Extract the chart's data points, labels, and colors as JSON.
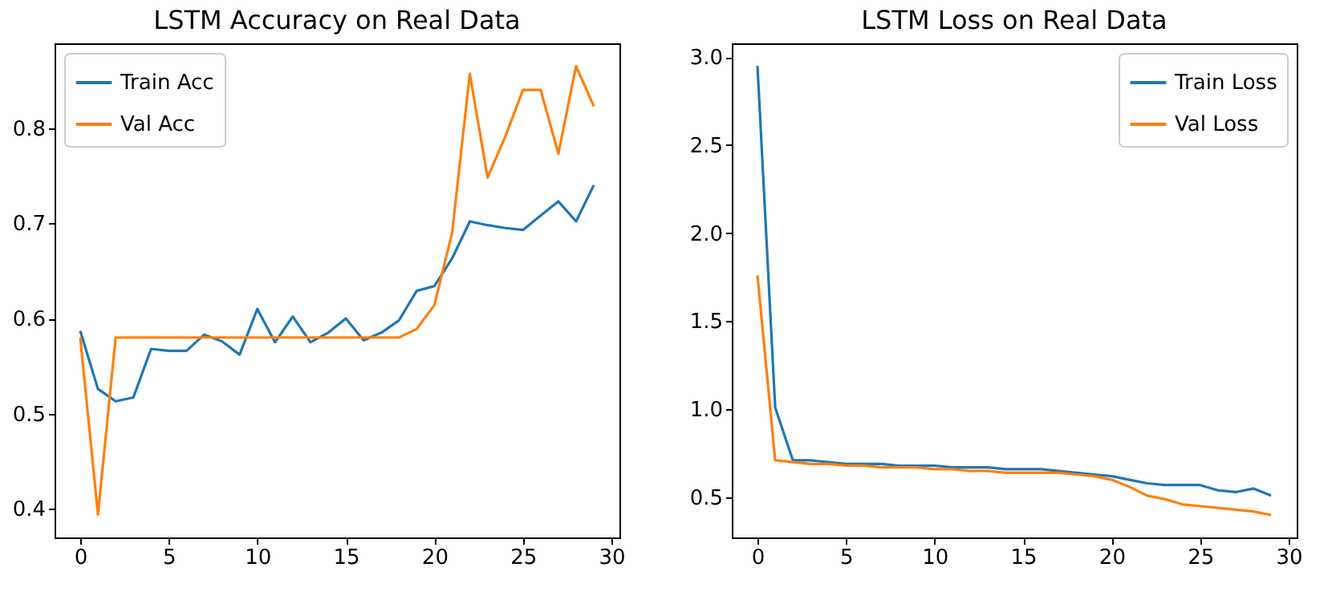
{
  "chart_data": [
    {
      "type": "line",
      "title": "LSTM Accuracy on Real Data",
      "x": [
        0,
        1,
        2,
        3,
        4,
        5,
        6,
        7,
        8,
        9,
        10,
        11,
        12,
        13,
        14,
        15,
        16,
        17,
        18,
        19,
        20,
        21,
        22,
        23,
        24,
        25,
        26,
        27,
        28,
        29
      ],
      "series": [
        {
          "name": "Train Acc",
          "color": "#1f77b4",
          "values": [
            0.587,
            0.526,
            0.513,
            0.517,
            0.568,
            0.566,
            0.566,
            0.583,
            0.576,
            0.562,
            0.61,
            0.575,
            0.602,
            0.575,
            0.585,
            0.6,
            0.577,
            0.585,
            0.598,
            0.629,
            0.634,
            0.663,
            0.702,
            0.698,
            0.695,
            0.693,
            0.708,
            0.723,
            0.702,
            0.74
          ]
        },
        {
          "name": "Val Acc",
          "color": "#ff7f0e",
          "values": [
            0.58,
            0.394,
            0.58,
            0.58,
            0.58,
            0.58,
            0.58,
            0.58,
            0.58,
            0.58,
            0.58,
            0.58,
            0.58,
            0.58,
            0.58,
            0.58,
            0.58,
            0.58,
            0.58,
            0.589,
            0.614,
            0.69,
            0.857,
            0.748,
            0.791,
            0.84,
            0.84,
            0.773,
            0.865,
            0.823
          ]
        }
      ],
      "xlim": [
        -1.45,
        30.45
      ],
      "ylim": [
        0.37,
        0.889
      ],
      "xticks": [
        0,
        5,
        10,
        15,
        20,
        25,
        30
      ],
      "yticks": [
        0.4,
        0.5,
        0.6,
        0.7,
        0.8
      ],
      "legend": "top left"
    },
    {
      "type": "line",
      "title": "LSTM Loss on Real Data",
      "x": [
        0,
        1,
        2,
        3,
        4,
        5,
        6,
        7,
        8,
        9,
        10,
        11,
        12,
        13,
        14,
        15,
        16,
        17,
        18,
        19,
        20,
        21,
        22,
        23,
        24,
        25,
        26,
        27,
        28,
        29
      ],
      "series": [
        {
          "name": "Train Loss",
          "color": "#1f77b4",
          "values": [
            2.95,
            1.01,
            0.71,
            0.71,
            0.7,
            0.69,
            0.69,
            0.69,
            0.68,
            0.68,
            0.68,
            0.67,
            0.67,
            0.67,
            0.66,
            0.66,
            0.66,
            0.65,
            0.64,
            0.63,
            0.62,
            0.6,
            0.58,
            0.57,
            0.57,
            0.57,
            0.54,
            0.53,
            0.55,
            0.51
          ]
        },
        {
          "name": "Val Loss",
          "color": "#ff7f0e",
          "values": [
            1.76,
            0.71,
            0.7,
            0.69,
            0.69,
            0.68,
            0.68,
            0.67,
            0.67,
            0.67,
            0.66,
            0.66,
            0.65,
            0.65,
            0.64,
            0.64,
            0.64,
            0.64,
            0.63,
            0.62,
            0.6,
            0.56,
            0.51,
            0.49,
            0.46,
            0.45,
            0.44,
            0.43,
            0.42,
            0.4
          ]
        }
      ],
      "xlim": [
        -1.45,
        30.45
      ],
      "ylim": [
        0.2725,
        3.0775
      ],
      "xticks": [
        0,
        5,
        10,
        15,
        20,
        25,
        30
      ],
      "yticks": [
        {
          "value": 0.5,
          "label": "0.5"
        },
        {
          "value": 1,
          "label": "1.0"
        },
        {
          "value": 1.5,
          "label": "1.5"
        },
        {
          "value": 2,
          "label": "2.0"
        },
        {
          "value": 2.5,
          "label": "2.5"
        },
        {
          "value": 3,
          "label": "3.0"
        }
      ],
      "legend": "top right"
    }
  ]
}
